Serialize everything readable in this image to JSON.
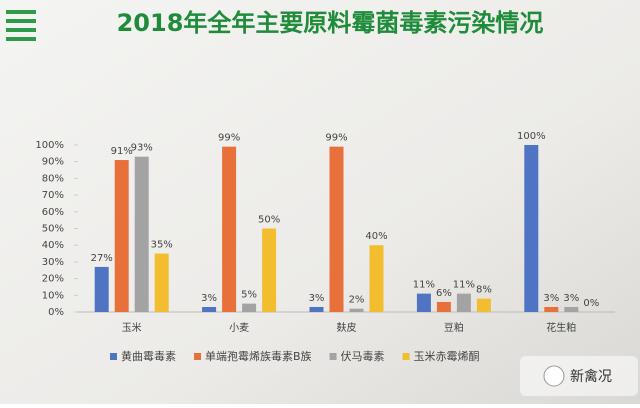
{
  "chart_data": {
    "type": "bar",
    "title": "2018年全年主要原料霉菌毒素污染情况",
    "categories": [
      "玉米",
      "小麦",
      "麸皮",
      "豆粕",
      "花生粕"
    ],
    "series": [
      {
        "name": "黄曲霉毒素",
        "color": "#4f74c4",
        "values": [
          27,
          3,
          3,
          11,
          100
        ],
        "value_labels": [
          "27%",
          "3%",
          "3%",
          "11%",
          "100%"
        ]
      },
      {
        "name": "单端孢霉烯族毒素B族",
        "color": "#e8703a",
        "values": [
          91,
          99,
          99,
          6,
          3
        ],
        "value_labels": [
          "91%",
          "99%",
          "99%",
          "6%",
          "3%"
        ]
      },
      {
        "name": "伏马毒素",
        "color": "#a3a3a3",
        "values": [
          93,
          5,
          2,
          11,
          3
        ],
        "value_labels": [
          "93%",
          "5%",
          "2%",
          "11%",
          "3%"
        ]
      },
      {
        "name": "玉米赤霉烯酮",
        "color": "#f2bd2e",
        "values": [
          35,
          50,
          40,
          8,
          0
        ],
        "value_labels": [
          "35%",
          "50%",
          "40%",
          "8%",
          "0%"
        ]
      }
    ],
    "ylim": [
      0,
      100
    ],
    "yticks": [
      {
        "value": 0,
        "label": "0%"
      },
      {
        "value": 10,
        "label": "10%"
      },
      {
        "value": 20,
        "label": "20%"
      },
      {
        "value": 30,
        "label": "30%"
      },
      {
        "value": 40,
        "label": "40%"
      },
      {
        "value": 50,
        "label": "50%"
      },
      {
        "value": 60,
        "label": "60%"
      },
      {
        "value": 70,
        "label": "70%"
      },
      {
        "value": 80,
        "label": "80%"
      },
      {
        "value": 90,
        "label": "90%"
      },
      {
        "value": 100,
        "label": "100%"
      }
    ],
    "grid": false,
    "watermark": "新禽况"
  }
}
